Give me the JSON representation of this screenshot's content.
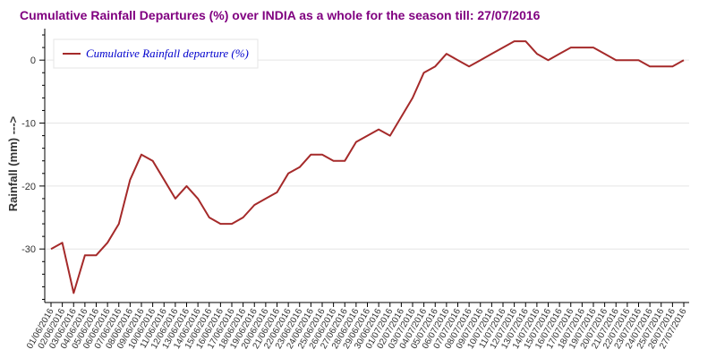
{
  "chart_data": {
    "type": "line",
    "title": "Cumulative Rainfall Departures (%) over INDIA as a whole for the season till: 27/07/2016",
    "xlabel": "",
    "ylabel": "Rainfall (mm) --->",
    "ylim": [
      -38.5,
      5
    ],
    "yticks": [
      0,
      -10,
      -20,
      -30
    ],
    "grid": "horizontal",
    "legend": "top-left",
    "colors": {
      "title": "#800080",
      "line": "#a52a2a",
      "legend_text": "#0000cd",
      "grid": "#e5e5e5",
      "axis": "#000000"
    },
    "x": [
      "01/06/2016",
      "02/06/2016",
      "03/06/2016",
      "04/06/2016",
      "05/06/2016",
      "06/06/2016",
      "07/06/2016",
      "08/06/2016",
      "09/06/2016",
      "10/06/2016",
      "11/06/2016",
      "12/06/2016",
      "13/06/2016",
      "14/06/2016",
      "15/06/2016",
      "16/06/2016",
      "17/06/2016",
      "18/06/2016",
      "19/06/2016",
      "20/06/2016",
      "21/06/2016",
      "22/06/2016",
      "23/06/2016",
      "24/06/2016",
      "25/06/2016",
      "26/06/2016",
      "27/06/2016",
      "28/06/2016",
      "29/06/2016",
      "30/06/2016",
      "01/07/2016",
      "02/07/2016",
      "03/07/2016",
      "04/07/2016",
      "05/07/2016",
      "06/07/2016",
      "07/07/2016",
      "08/07/2016",
      "09/07/2016",
      "10/07/2016",
      "11/07/2016",
      "12/07/2016",
      "13/07/2016",
      "14/07/2016",
      "15/07/2016",
      "16/07/2016",
      "17/07/2016",
      "18/07/2016",
      "19/07/2016",
      "20/07/2016",
      "21/07/2016",
      "22/07/2016",
      "23/07/2016",
      "24/07/2016",
      "25/07/2016",
      "26/07/2016",
      "27/07/2016"
    ],
    "series": [
      {
        "name": "Cumulative Rainfall departure (%)",
        "values": [
          -30,
          -29,
          -37,
          -31,
          -31,
          -29,
          -26,
          -19,
          -15,
          -16,
          -19,
          -22,
          -20,
          -22,
          -25,
          -26,
          -26,
          -25,
          -23,
          -22,
          -21,
          -18,
          -17,
          -15,
          -15,
          -16,
          -16,
          -13,
          -12,
          -11,
          -12,
          -9,
          -6,
          -2,
          -1,
          1,
          0,
          -1,
          0,
          1,
          2,
          3,
          3,
          1,
          0,
          1,
          2,
          2,
          2,
          1,
          0,
          0,
          0,
          -1,
          -1,
          -1,
          0
        ]
      }
    ]
  }
}
